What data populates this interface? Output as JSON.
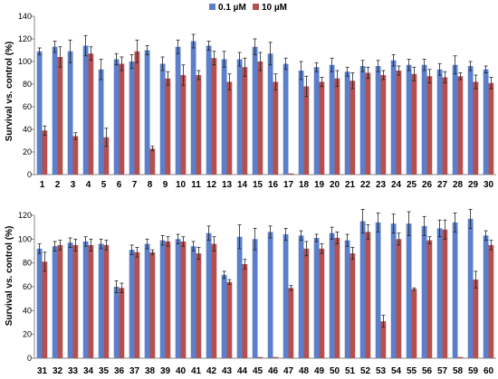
{
  "chart_data": [
    {
      "type": "bar",
      "ylabel": "Survival vs. control (%)",
      "ylim": [
        0,
        140
      ],
      "yticks": [
        0,
        20,
        40,
        60,
        80,
        100,
        120,
        140
      ],
      "categories": [
        "1",
        "2",
        "3",
        "4",
        "5",
        "6",
        "7",
        "8",
        "9",
        "10",
        "11",
        "12",
        "13",
        "14",
        "15",
        "16",
        "17",
        "18",
        "19",
        "20",
        "21",
        "22",
        "23",
        "24",
        "25",
        "26",
        "27",
        "28",
        "29",
        "30"
      ],
      "series": [
        {
          "name": "0.1 µM",
          "color": "#5b7fcb",
          "values": [
            109,
            113,
            109,
            114,
            93,
            102,
            100,
            110,
            98,
            113,
            118,
            114,
            102,
            102,
            113,
            107,
            98,
            92,
            95,
            97,
            91,
            96,
            96,
            101,
            97,
            97,
            93,
            97,
            96,
            93
          ],
          "errors": [
            3,
            5,
            10,
            9,
            9,
            5,
            6,
            4,
            6,
            6,
            6,
            4,
            7,
            6,
            7,
            10,
            5,
            8,
            4,
            6,
            4,
            5,
            5,
            5,
            5,
            5,
            5,
            8,
            4,
            3
          ]
        },
        {
          "name": "10 µM",
          "color": "#b5504e",
          "values": [
            39,
            104,
            34,
            107,
            33,
            98,
            109,
            23,
            85,
            88,
            88,
            103,
            82,
            95,
            100,
            82,
            1,
            78,
            82,
            85,
            83,
            90,
            88,
            92,
            89,
            87,
            86,
            87,
            82,
            81
          ],
          "errors": [
            4,
            9,
            3,
            6,
            8,
            6,
            10,
            2,
            6,
            9,
            4,
            6,
            7,
            8,
            8,
            7,
            0,
            9,
            4,
            7,
            7,
            5,
            4,
            4,
            6,
            6,
            5,
            3,
            6,
            5
          ]
        }
      ]
    },
    {
      "type": "bar",
      "ylabel": "Survival vs. control (%)",
      "ylim": [
        0,
        120
      ],
      "yticks": [
        0,
        20,
        40,
        60,
        80,
        100,
        120
      ],
      "categories": [
        "31",
        "32",
        "33",
        "34",
        "35",
        "36",
        "37",
        "38",
        "39",
        "40",
        "41",
        "42",
        "43",
        "44",
        "45",
        "46",
        "47",
        "48",
        "49",
        "50",
        "51",
        "52",
        "53",
        "54",
        "55",
        "56",
        "57",
        "58",
        "59",
        "60"
      ],
      "series": [
        {
          "name": "0.1 µM",
          "color": "#5b7fcb",
          "values": [
            92,
            94,
            97,
            98,
            96,
            60,
            91,
            96,
            99,
            100,
            94,
            105,
            70,
            102,
            100,
            106,
            104,
            103,
            101,
            105,
            99,
            115,
            114,
            113,
            113,
            111,
            109,
            114,
            117,
            103
          ],
          "errors": [
            4,
            4,
            4,
            4,
            4,
            5,
            4,
            4,
            4,
            4,
            4,
            6,
            3,
            10,
            9,
            5,
            5,
            4,
            3,
            5,
            5,
            10,
            8,
            8,
            10,
            8,
            7,
            8,
            8,
            4
          ]
        },
        {
          "name": "10 µM",
          "color": "#b5504e",
          "values": [
            81,
            95,
            95,
            95,
            95,
            59,
            89,
            89,
            98,
            98,
            88,
            96,
            64,
            79,
            1,
            1,
            59,
            92,
            92,
            101,
            88,
            106,
            31,
            100,
            58,
            99,
            108,
            1,
            66,
            95
          ],
          "errors": [
            8,
            4,
            5,
            5,
            4,
            4,
            4,
            2,
            4,
            4,
            5,
            6,
            2,
            4,
            0,
            0,
            2,
            6,
            4,
            5,
            5,
            6,
            5,
            5,
            1,
            3,
            8,
            0,
            7,
            4
          ]
        }
      ]
    }
  ]
}
